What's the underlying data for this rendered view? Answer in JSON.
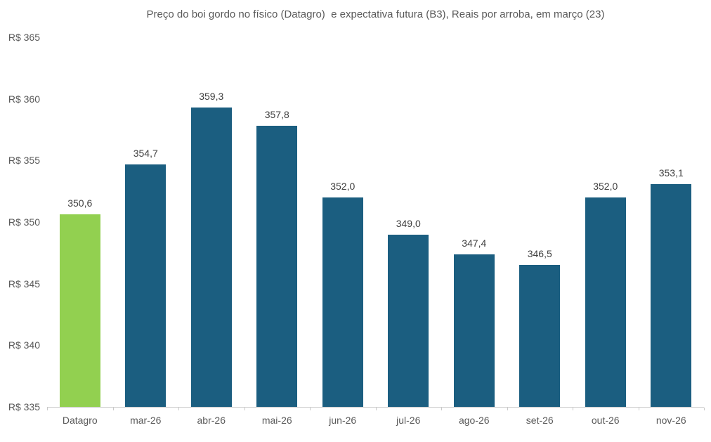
{
  "chart_data": {
    "type": "bar",
    "title": "Preço do boi gordo no físico (Datagro)  e expectativa futura (B3), Reais por arroba, em março (23)",
    "categories": [
      "Datagro",
      "mar-26",
      "abr-26",
      "mai-26",
      "jun-26",
      "jul-26",
      "ago-26",
      "set-26",
      "out-26",
      "nov-26"
    ],
    "values": [
      350.6,
      354.7,
      359.3,
      357.8,
      352.0,
      349.0,
      347.4,
      346.5,
      352.0,
      353.1
    ],
    "value_labels": [
      "350,6",
      "354,7",
      "359,3",
      "357,8",
      "352,0",
      "349,0",
      "347,4",
      "346,5",
      "352,0",
      "353,1"
    ],
    "xlabel": "",
    "ylabel": "",
    "ylim": [
      335,
      365
    ],
    "y_ticks": [
      {
        "value": 335,
        "label": "R$ 335"
      },
      {
        "value": 340,
        "label": "R$ 340"
      },
      {
        "value": 345,
        "label": "R$ 345"
      },
      {
        "value": 350,
        "label": "R$ 350"
      },
      {
        "value": 355,
        "label": "R$ 355"
      },
      {
        "value": 360,
        "label": "R$ 360"
      },
      {
        "value": 365,
        "label": "R$ 365"
      }
    ],
    "grid": false,
    "legend": "none",
    "highlight_index": 0,
    "colors": {
      "highlight_bar": "#92D050",
      "default_bar": "#1B5E80",
      "axis_line": "#C9C9C9",
      "title_text": "#595959",
      "tick_text": "#595959",
      "data_label_text": "#404040"
    }
  }
}
